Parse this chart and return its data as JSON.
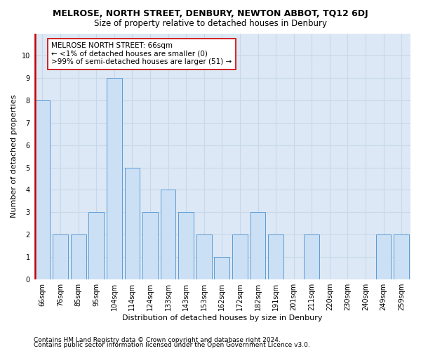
{
  "title": "MELROSE, NORTH STREET, DENBURY, NEWTON ABBOT, TQ12 6DJ",
  "subtitle": "Size of property relative to detached houses in Denbury",
  "xlabel": "Distribution of detached houses by size in Denbury",
  "ylabel": "Number of detached properties",
  "categories": [
    "66sqm",
    "76sqm",
    "85sqm",
    "95sqm",
    "104sqm",
    "114sqm",
    "124sqm",
    "133sqm",
    "143sqm",
    "153sqm",
    "162sqm",
    "172sqm",
    "182sqm",
    "191sqm",
    "201sqm",
    "211sqm",
    "220sqm",
    "230sqm",
    "240sqm",
    "249sqm",
    "259sqm"
  ],
  "values": [
    8,
    2,
    2,
    3,
    9,
    5,
    3,
    4,
    3,
    2,
    1,
    2,
    3,
    2,
    0,
    2,
    0,
    0,
    0,
    2,
    2
  ],
  "bar_color": "#cce0f5",
  "bar_edge_color": "#5b9bd5",
  "highlight_index": 0,
  "highlight_line_color": "#cc0000",
  "annotation_box_color": "#ffffff",
  "annotation_box_edge_color": "#cc0000",
  "annotation_line1": "MELROSE NORTH STREET: 66sqm",
  "annotation_line2": "← <1% of detached houses are smaller (0)",
  "annotation_line3": ">99% of semi-detached houses are larger (51) →",
  "ylim": [
    0,
    11
  ],
  "yticks": [
    0,
    1,
    2,
    3,
    4,
    5,
    6,
    7,
    8,
    9,
    10,
    11
  ],
  "grid_color": "#c8d8e8",
  "background_color": "#dce8f5",
  "footer_line1": "Contains HM Land Registry data © Crown copyright and database right 2024.",
  "footer_line2": "Contains public sector information licensed under the Open Government Licence v3.0.",
  "title_fontsize": 9,
  "subtitle_fontsize": 8.5,
  "xlabel_fontsize": 8,
  "ylabel_fontsize": 8,
  "annotation_fontsize": 7.5,
  "tick_fontsize": 7,
  "footer_fontsize": 6.5
}
